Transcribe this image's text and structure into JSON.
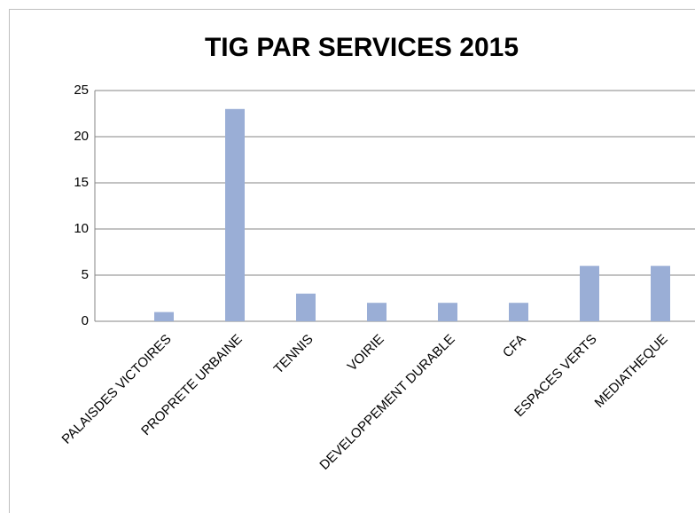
{
  "chart_data": {
    "type": "bar",
    "title": "TIG PAR SERVICES 2015",
    "categories": [
      "PALAISDES VICTOIRES",
      "PROPRETE URBAINE",
      "TENNIS",
      "VOIRIE",
      "DEVELOPPEMENT DURABLE",
      "CFA",
      "ESPACES VERTS",
      "MEDIATHEQUE"
    ],
    "values": [
      1,
      23,
      3,
      2,
      2,
      2,
      6,
      6
    ],
    "color": "#9aaed6",
    "ylim": [
      0,
      25
    ],
    "yticks": [
      0,
      5,
      10,
      15,
      20,
      25
    ],
    "grid": true
  }
}
